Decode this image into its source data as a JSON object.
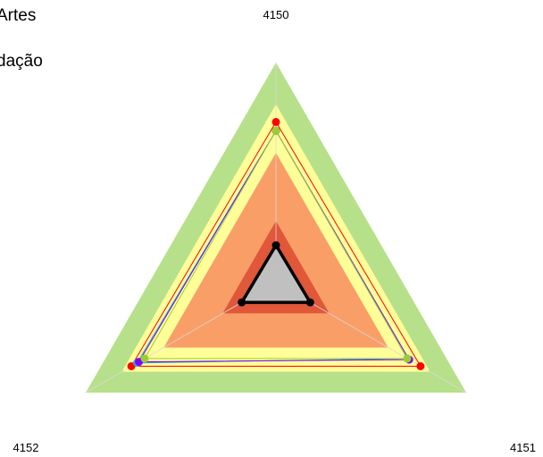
{
  "chart_data": {
    "type": "radar",
    "axes": [
      "4150",
      "4151",
      "4152"
    ],
    "scale_max": 1.0,
    "bands": [
      {
        "from": 0.0,
        "to": 0.28,
        "color": "#e0573a"
      },
      {
        "from": 0.28,
        "to": 0.59,
        "color": "#fa9e68"
      },
      {
        "from": 0.59,
        "to": 0.81,
        "color": "#ffff99"
      },
      {
        "from": 0.81,
        "to": 1.0,
        "color": "#b7e08a"
      }
    ],
    "series": [
      {
        "values": [
          0.73,
          0.76,
          0.76
        ],
        "color": "#ff0000",
        "marker": "circle",
        "line_width": 1
      },
      {
        "values": [
          0.69,
          0.69,
          0.73
        ],
        "color": "#2ca5e0",
        "marker": "circle",
        "line_width": 1
      },
      {
        "values": [
          0.69,
          0.7,
          0.72
        ],
        "color": "#7f00ff",
        "marker": "circle",
        "line_width": 1
      },
      {
        "values": [
          0.69,
          0.69,
          0.69
        ],
        "color": "#9acd32",
        "marker": "circle",
        "line_width": 1
      },
      {
        "values": [
          0.17,
          0.18,
          0.18
        ],
        "color": "#000000",
        "marker": "circle",
        "line_width": 3.5,
        "fill": "#c0c0c0"
      }
    ]
  },
  "legend": {
    "lines": [
      "Artes",
      "dação"
    ]
  }
}
